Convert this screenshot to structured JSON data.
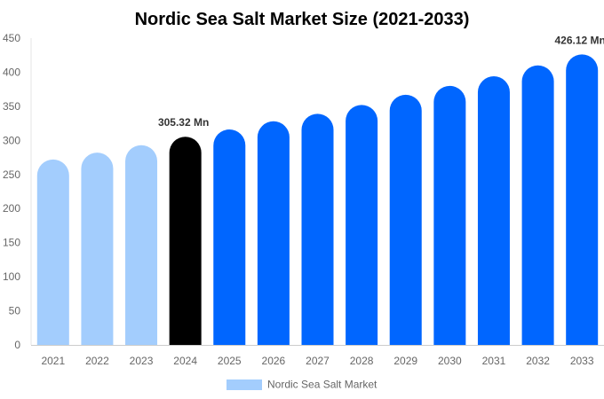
{
  "chart_data": {
    "type": "bar",
    "title": "Nordic Sea Salt Market Size (2021-2033)",
    "categories": [
      "2021",
      "2022",
      "2023",
      "2024",
      "2025",
      "2026",
      "2027",
      "2028",
      "2029",
      "2030",
      "2031",
      "2032",
      "2033"
    ],
    "series": [
      {
        "name": "Nordic Sea Salt Market",
        "values": [
          272,
          282,
          293,
          305.32,
          316,
          328,
          339,
          352,
          367,
          380,
          394,
          410,
          426.12
        ]
      }
    ],
    "bar_colors": [
      "#a3cdfd",
      "#a3cdfd",
      "#a3cdfd",
      "#000000",
      "#0066ff",
      "#0066ff",
      "#0066ff",
      "#0066ff",
      "#0066ff",
      "#0066ff",
      "#0066ff",
      "#0066ff",
      "#0066ff"
    ],
    "data_labels": [
      {
        "category": "2024",
        "text": "305.32 Mn"
      },
      {
        "category": "2033",
        "text": "426.12 Mn"
      }
    ],
    "yticks": [
      "0",
      "50",
      "100",
      "150",
      "200",
      "250",
      "300",
      "350",
      "400",
      "450"
    ],
    "ylim": [
      0,
      450
    ],
    "xlabel": "",
    "ylabel": "",
    "grid": false,
    "legend": {
      "position": "bottom",
      "label": "Nordic Sea Salt Market",
      "color": "#a3cdfd"
    }
  }
}
